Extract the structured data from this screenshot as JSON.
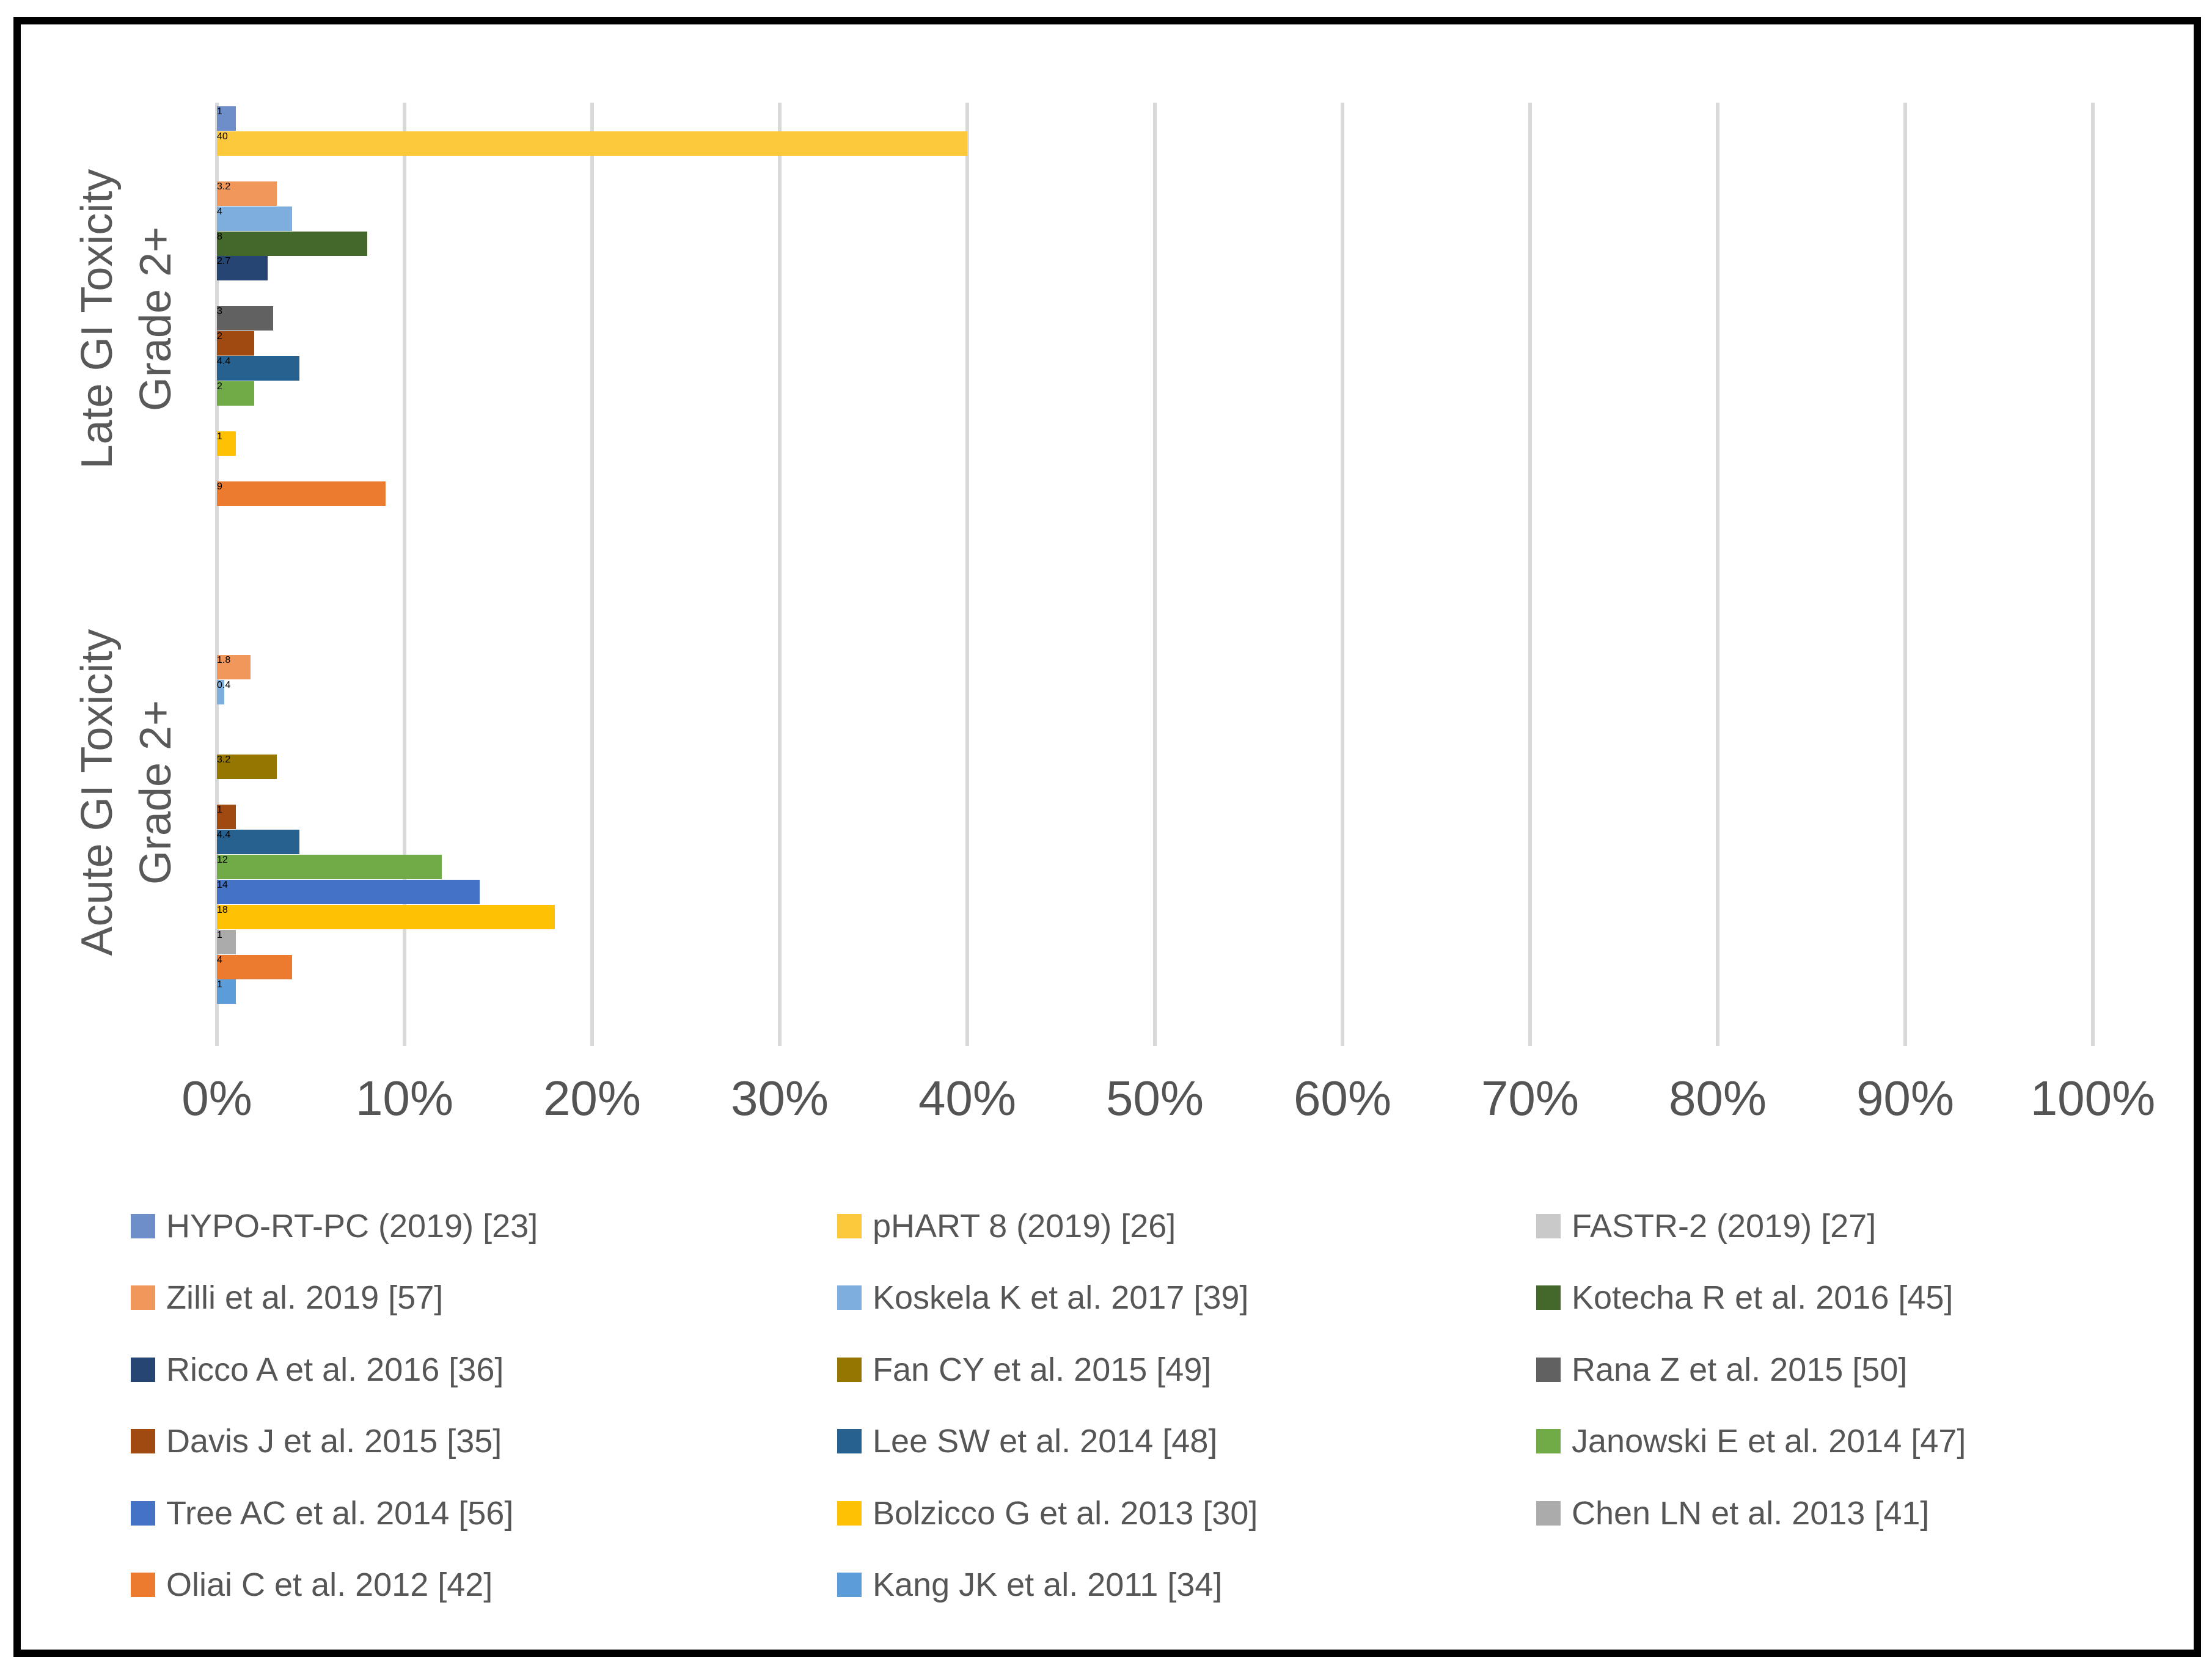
{
  "chart_data": {
    "type": "bar",
    "orientation": "horizontal",
    "title": "",
    "xlabel": "",
    "ylabel": "",
    "unit": "percent",
    "xlim": [
      0,
      100
    ],
    "x_tick_labels": [
      "0%",
      "10%",
      "20%",
      "30%",
      "40%",
      "50%",
      "60%",
      "70%",
      "80%",
      "90%",
      "100%"
    ],
    "grid": true,
    "legend_position": "bottom",
    "categories": [
      {
        "id": "late",
        "label_lines": [
          "Late GI Toxicity",
          "Grade 2+"
        ]
      },
      {
        "id": "acute",
        "label_lines": [
          "Acute GI Toxicity",
          "Grade 2+"
        ]
      }
    ],
    "series": [
      {
        "name": "HYPO-RT-PC (2019) [23]",
        "color": "#6D8EC9",
        "values": [
          1,
          0
        ]
      },
      {
        "name": "pHART 8 (2019) [26]",
        "color": "#FCC83C",
        "values": [
          40,
          0
        ]
      },
      {
        "name": "FASTR-2 (2019) [27]",
        "color": "#C9C9C9",
        "values": [
          0,
          0
        ]
      },
      {
        "name": "Zilli et al. 2019 [57]",
        "color": "#F0975C",
        "values": [
          3.2,
          1.8
        ]
      },
      {
        "name": "Koskela K et al. 2017 [39]",
        "color": "#7EAEDD",
        "values": [
          4,
          0.4
        ]
      },
      {
        "name": "Kotecha R et al. 2016 [45]",
        "color": "#44682C",
        "values": [
          8,
          0
        ]
      },
      {
        "name": "Ricco A et al. 2016 [36]",
        "color": "#264573",
        "values": [
          2.7,
          0
        ]
      },
      {
        "name": "Fan CY et al. 2015 [49]",
        "color": "#947600",
        "values": [
          0,
          3.2
        ]
      },
      {
        "name": "Rana Z et al. 2015 [50]",
        "color": "#616161",
        "values": [
          3,
          0
        ]
      },
      {
        "name": "Davis J et al. 2015 [35]",
        "color": "#A04A12",
        "values": [
          2,
          1
        ]
      },
      {
        "name": "Lee SW et al. 2014 [48]",
        "color": "#26618F",
        "values": [
          4.4,
          4.4
        ]
      },
      {
        "name": "Janowski E et al. 2014 [47]",
        "color": "#70AB47",
        "values": [
          2,
          12
        ]
      },
      {
        "name": "Tree AC et al. 2014 [56]",
        "color": "#4473C5",
        "values": [
          0,
          14
        ]
      },
      {
        "name": "Bolzicco G et al. 2013 [30]",
        "color": "#FFC103",
        "values": [
          1,
          18
        ]
      },
      {
        "name": "Chen LN et al. 2013 [41]",
        "color": "#ABABAB",
        "values": [
          0,
          1
        ]
      },
      {
        "name": "Oliai C et al. 2012 [42]",
        "color": "#EC7B2F",
        "values": [
          9,
          4
        ]
      },
      {
        "name": "Kang JK et al. 2011 [34]",
        "color": "#5B9CD9",
        "values": [
          0,
          1
        ]
      }
    ]
  }
}
